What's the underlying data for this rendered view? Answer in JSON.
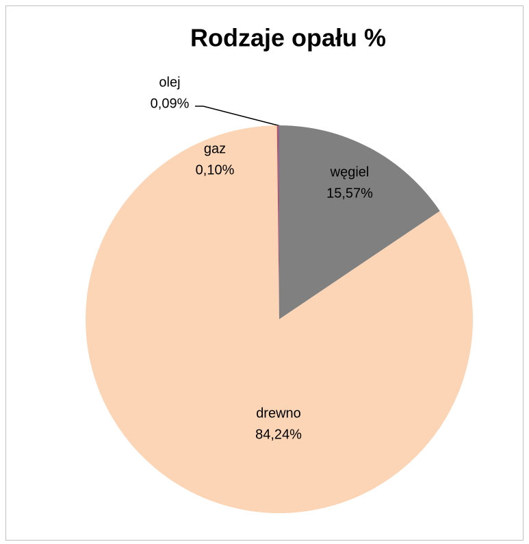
{
  "chart_data": {
    "type": "pie",
    "title": "Rodzaje opału %",
    "categories": [
      "węgiel",
      "drewno",
      "gaz",
      "olej"
    ],
    "values": [
      15.57,
      84.24,
      0.1,
      0.09
    ],
    "value_labels": [
      "15,57%",
      "84,24%",
      "0,10%",
      "0,09%"
    ],
    "colors": [
      "#808080",
      "#fbd5b5",
      "#c0504d",
      "#8064a2"
    ]
  }
}
